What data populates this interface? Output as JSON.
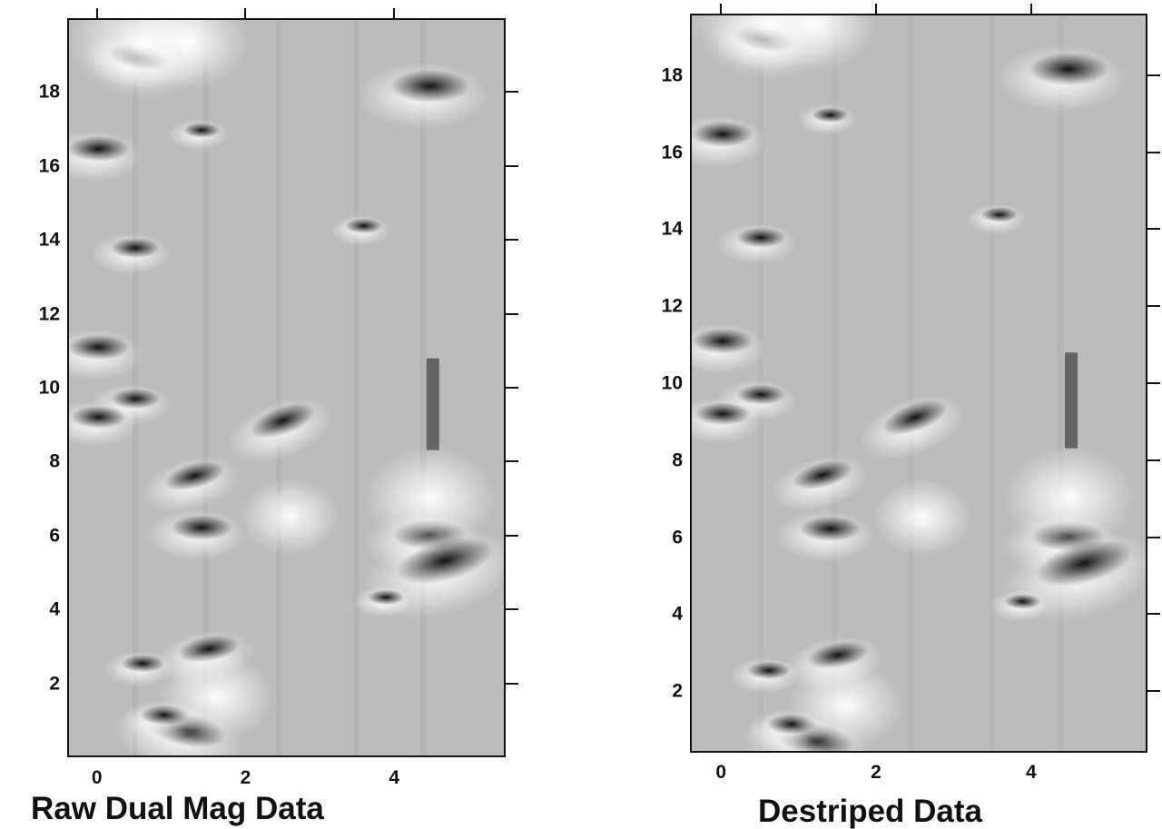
{
  "panels": [
    {
      "id": "left",
      "caption": "Raw Dual Mag Data",
      "x_ticks": [
        "0",
        "2",
        "4"
      ],
      "y_ticks": [
        "2",
        "4",
        "6",
        "8",
        "10",
        "12",
        "14",
        "16",
        "18"
      ],
      "x_range": [
        -0.4,
        5.5
      ],
      "y_range": [
        0,
        20
      ]
    },
    {
      "id": "right",
      "caption": "Destriped Data",
      "x_ticks": [
        "0",
        "2",
        "4"
      ],
      "y_ticks": [
        "2",
        "4",
        "6",
        "8",
        "10",
        "12",
        "14",
        "16",
        "18"
      ],
      "x_range": [
        -0.4,
        5.5
      ],
      "y_range": [
        0.4,
        19.6
      ]
    }
  ],
  "colors": {
    "background": "#bcbcbc",
    "frame": "#111111",
    "dark_anomaly": "#111111",
    "light_anomaly": "#ffffff"
  }
}
